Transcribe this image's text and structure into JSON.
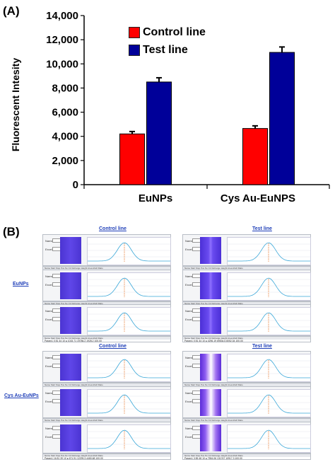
{
  "panel_a_label": "(A)",
  "panel_b_label": "(B)",
  "chart_data": {
    "type": "bar",
    "categories": [
      "EuNPs",
      "Cys Au-EuNPS"
    ],
    "series": [
      {
        "name": "Control line",
        "values": [
          4200,
          4650
        ],
        "errors": [
          200,
          220
        ],
        "color": "#ff0000"
      },
      {
        "name": "Test line",
        "values": [
          8500,
          10950
        ],
        "errors": [
          350,
          450
        ],
        "color": "#000099"
      }
    ],
    "ylabel": "Fluorescent Intesity",
    "ylim": [
      0,
      14000
    ],
    "yticks": [
      0,
      2000,
      4000,
      6000,
      8000,
      10000,
      12000,
      14000
    ],
    "ytick_labels": [
      "0",
      "2,000",
      "4,000",
      "6,000",
      "8,000",
      "10,000",
      "12,000",
      "14,000"
    ],
    "legend_position": "top-center",
    "grid": false
  },
  "panel_b": {
    "col_titles": [
      "Control line",
      "Test line"
    ],
    "row_labels": [
      "EuNPs",
      "Cys Au-EuNPs"
    ],
    "field_labels": [
      "Name:",
      "Excel:"
    ],
    "table_header": "Name   Start   Stop   Pos   No   Ctr   Refrange   Height   Area   Abs#   Ratio",
    "tables": {
      "control_eu": [
        "Param1   0   81   44   10   ●   1103.61   11676.5   4087.51   100.00",
        "Param1   0   81   44   10   ●   1020.51   10230.3   4164.51   100.00",
        "Param1   0   81   44   10   ●   1015.71   19786.2   1928.2   100.00"
      ],
      "test_eu": [
        "Param1   0   81   44   10   ●   2910.35   61536   7377.12   100.00",
        "Param1   0   81   44   10   ●   6669.96   75511.6   8475.4   100.00",
        "Param1   0   81   44   10   ●   4296.19   69534.6   8052.34   100.00"
      ],
      "control_cys": [
        "Param1   16   81   39   10   ●   807.818   14788.1   4069.37   100.00",
        "Param1   16   81   39   10   ●   711.875   13000.2   4878.37   100.00",
        "Param1   16   81   39   10   ●   671.91   12299.3   4480.68   100.00"
      ],
      "test_cys": [
        "Param1   3   85   48   10   ●   8385.06   137927   12390.2   100.00",
        "Param1   3   85   48   10   ●   7922.19   125933   11548.9   100.00",
        "Param1   3   85   48   10   ●   7554.06   131767   10917.3   100.00"
      ]
    }
  }
}
